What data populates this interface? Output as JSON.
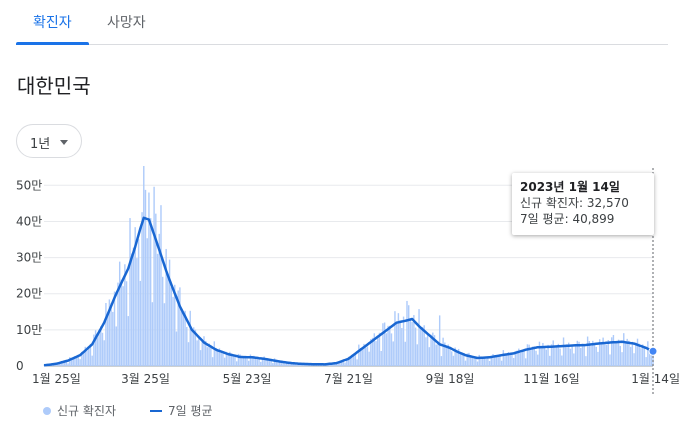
{
  "tabs": [
    {
      "label": "확진자",
      "active": true
    },
    {
      "label": "사망자",
      "active": false
    }
  ],
  "region": {
    "title": "대한민국"
  },
  "period_selector": {
    "value": "1년",
    "icon": "caret-down-icon"
  },
  "tooltip": {
    "date": "2023년 1월 14일",
    "cases_label": "신규 확진자",
    "cases_value": "32,570",
    "avg_label": "7일 평균",
    "avg_value": "40,899"
  },
  "legend": {
    "cases": "신규 확진자",
    "average": "7일 평균"
  },
  "colors": {
    "accent": "#1a73e8",
    "bar": "#aecbfa",
    "line": "#1967d2"
  },
  "chart_data": {
    "type": "bar",
    "title": "",
    "xlabel": "",
    "ylabel": "",
    "ylim": [
      0,
      570000
    ],
    "grid": true,
    "y_ticks": [
      {
        "value": 0,
        "label": "0"
      },
      {
        "value": 100000,
        "label": "10만"
      },
      {
        "value": 200000,
        "label": "20만"
      },
      {
        "value": 300000,
        "label": "30만"
      },
      {
        "value": 400000,
        "label": "40만"
      },
      {
        "value": 500000,
        "label": "50만"
      }
    ],
    "x_ticks": [
      {
        "day": 0,
        "label": "1월 25일"
      },
      {
        "day": 59,
        "label": "3월 25일"
      },
      {
        "day": 118,
        "label": "5월 23일"
      },
      {
        "day": 177,
        "label": "7월 21일"
      },
      {
        "day": 236,
        "label": "9월 18일"
      },
      {
        "day": 295,
        "label": "11월 16일"
      },
      {
        "day": 354,
        "label": "1월 14일"
      }
    ],
    "series": [
      {
        "name": "신규 확진자",
        "kind": "bars"
      },
      {
        "name": "7일 평균",
        "kind": "line"
      }
    ],
    "average_anchors": [
      [
        0,
        2000
      ],
      [
        7,
        6000
      ],
      [
        14,
        15000
      ],
      [
        21,
        30000
      ],
      [
        28,
        60000
      ],
      [
        35,
        120000
      ],
      [
        42,
        200000
      ],
      [
        49,
        270000
      ],
      [
        53,
        330000
      ],
      [
        56,
        380000
      ],
      [
        58,
        410000
      ],
      [
        61,
        405000
      ],
      [
        65,
        350000
      ],
      [
        72,
        250000
      ],
      [
        79,
        165000
      ],
      [
        86,
        100000
      ],
      [
        93,
        65000
      ],
      [
        100,
        45000
      ],
      [
        107,
        33000
      ],
      [
        114,
        25000
      ],
      [
        121,
        24000
      ],
      [
        128,
        20000
      ],
      [
        135,
        14000
      ],
      [
        142,
        9000
      ],
      [
        149,
        6000
      ],
      [
        156,
        5000
      ],
      [
        163,
        4500
      ],
      [
        170,
        8000
      ],
      [
        177,
        20000
      ],
      [
        184,
        45000
      ],
      [
        191,
        70000
      ],
      [
        198,
        95000
      ],
      [
        205,
        120000
      ],
      [
        210,
        125000
      ],
      [
        214,
        130000
      ],
      [
        218,
        110000
      ],
      [
        224,
        85000
      ],
      [
        230,
        60000
      ],
      [
        236,
        50000
      ],
      [
        240,
        40000
      ],
      [
        245,
        30000
      ],
      [
        252,
        22000
      ],
      [
        259,
        24000
      ],
      [
        266,
        30000
      ],
      [
        273,
        35000
      ],
      [
        280,
        45000
      ],
      [
        287,
        52000
      ],
      [
        294,
        53000
      ],
      [
        301,
        55000
      ],
      [
        308,
        57000
      ],
      [
        315,
        58000
      ],
      [
        322,
        62000
      ],
      [
        329,
        65000
      ],
      [
        336,
        67000
      ],
      [
        343,
        62000
      ],
      [
        350,
        50000
      ],
      [
        354,
        40899
      ]
    ],
    "daily_amplitude": 0.3,
    "spikes": [
      {
        "day": 58,
        "value": 570000
      },
      {
        "day": 61,
        "value": 480000
      },
      {
        "day": 68,
        "value": 445000
      },
      {
        "day": 211,
        "value": 180000
      },
      {
        "day": 230,
        "value": 140000
      }
    ],
    "highlight": {
      "day": 354,
      "cases": 32570,
      "average": 40899
    }
  }
}
